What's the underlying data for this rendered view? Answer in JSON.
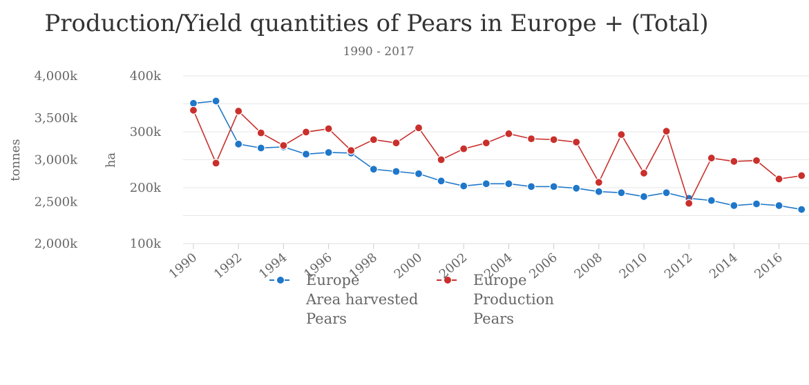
{
  "chart_data": {
    "type": "line",
    "title": "Production/Yield quantities of Pears in Europe + (Total)",
    "subtitle": "1990 - 2017",
    "x": [
      1990,
      1991,
      1992,
      1993,
      1994,
      1995,
      1996,
      1997,
      1998,
      1999,
      2000,
      2001,
      2002,
      2003,
      2004,
      2005,
      2006,
      2007,
      2008,
      2009,
      2010,
      2011,
      2012,
      2013,
      2014,
      2015,
      2016,
      2017
    ],
    "x_tick_labels": [
      "1990",
      "1992",
      "1994",
      "1996",
      "1998",
      "2000",
      "2002",
      "2004",
      "2006",
      "2008",
      "2010",
      "2012",
      "2014",
      "2016"
    ],
    "y_left": {
      "label": "tonnes",
      "range": [
        2000000,
        4000000
      ],
      "ticks": [
        2000000,
        2500000,
        3000000,
        3500000,
        4000000
      ],
      "tick_labels": [
        "2,000k",
        "2,500k",
        "3,000k",
        "3,500k",
        "4,000k"
      ]
    },
    "y_right": {
      "label": "ha",
      "range": [
        100000,
        400000
      ],
      "ticks": [
        100000,
        200000,
        300000,
        400000
      ],
      "tick_labels": [
        "100k",
        "200k",
        "300k",
        "400k"
      ]
    },
    "grid": true,
    "legend_position": "bottom",
    "series": [
      {
        "name": "Europe Area harvested Pears",
        "legend_lines": [
          "Europe",
          "Area harvested",
          "Pears"
        ],
        "axis": "ha",
        "color": "#1f77c9",
        "values": [
          351000,
          355000,
          278000,
          271000,
          273000,
          260000,
          263000,
          262000,
          233000,
          229000,
          225000,
          212000,
          203000,
          207000,
          207000,
          202000,
          202000,
          199000,
          193000,
          191000,
          184000,
          191000,
          181000,
          177000,
          168000,
          171000,
          168000,
          161000
        ]
      },
      {
        "name": "Europe Production Pears",
        "legend_lines": [
          "Europe",
          "Production",
          "Pears"
        ],
        "axis": "tonnes",
        "color": "#c9302c",
        "values": [
          3590000,
          2960000,
          3580000,
          3320000,
          3170000,
          3330000,
          3370000,
          3110000,
          3240000,
          3200000,
          3380000,
          3000000,
          3130000,
          3200000,
          3310000,
          3250000,
          3240000,
          3210000,
          2730000,
          3300000,
          2840000,
          3340000,
          2480000,
          3020000,
          2980000,
          2990000,
          2770000,
          2810000
        ]
      }
    ]
  }
}
